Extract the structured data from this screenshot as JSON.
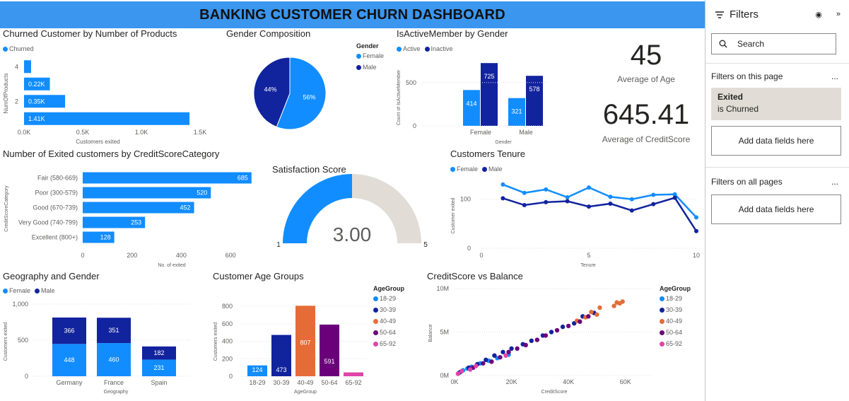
{
  "dashboard_title": "BANKING CUSTOMER CHURN DASHBOARD",
  "colors": {
    "blue": "#118dff",
    "navy": "#12239e",
    "orange": "#e66c37",
    "purple": "#6b007b",
    "pink": "#e044a7",
    "gauge_bg": "#e1ddd6",
    "banner": "#3a96ef"
  },
  "kpis": [
    {
      "value": "45",
      "label": "Average of Age"
    },
    {
      "value": "645.41",
      "label": "Average of CreditScore"
    }
  ],
  "chart_data": [
    {
      "id": "products",
      "type": "bar",
      "orientation": "horizontal",
      "title": "Churned Customer by Number of Products",
      "legend": [
        "Churned"
      ],
      "xlabel": "Customers exited",
      "ylabel": "NumOfProducts",
      "categories": [
        "1",
        "2",
        "3",
        "4"
      ],
      "values": [
        1410,
        350,
        220,
        60
      ],
      "value_labels": [
        "1.41K",
        "0.35K",
        "0.22K",
        ""
      ],
      "y_ticks": [
        "2",
        "4"
      ],
      "x_ticks": [
        "0.0K",
        "0.5K",
        "1.0K",
        "1.5K"
      ],
      "xlim": [
        0,
        1500
      ]
    },
    {
      "id": "gender",
      "type": "pie",
      "title": "Gender Composition",
      "legend_title": "Gender",
      "labels": [
        "Female",
        "Male"
      ],
      "values": [
        56,
        44
      ],
      "value_labels": [
        "56%",
        "44%"
      ]
    },
    {
      "id": "active",
      "type": "bar",
      "title": "IsActiveMember by Gender",
      "legend": [
        "Active",
        "Inactive"
      ],
      "xlabel": "Gender",
      "ylabel": "Count of IsActiveMember",
      "categories": [
        "Female",
        "Male"
      ],
      "series": [
        {
          "name": "Active",
          "values": [
            414,
            321
          ]
        },
        {
          "name": "Inactive",
          "values": [
            725,
            578
          ]
        }
      ],
      "y_ticks": [
        "0",
        "500"
      ],
      "ylim": [
        0,
        800
      ]
    },
    {
      "id": "creditcat",
      "type": "bar",
      "orientation": "horizontal",
      "title": "Number of Exited customers by CreditScoreCategory",
      "xlabel": "No. of exited",
      "ylabel": "CreditScoreCategory",
      "categories": [
        "Fair (580-669)",
        "Poor (300-579)",
        "Good (670-739)",
        "Very Good (740-799)",
        "Excellent (800+)"
      ],
      "values": [
        685,
        520,
        452,
        253,
        128
      ],
      "x_ticks": [
        "0",
        "200",
        "400",
        "600"
      ],
      "xlim": [
        0,
        700
      ]
    },
    {
      "id": "satisfaction",
      "type": "gauge",
      "title": "Satisfaction Score",
      "value": 3.0,
      "value_label": "3.00",
      "min": 1,
      "max": 5,
      "min_label": "1",
      "max_label": "5"
    },
    {
      "id": "tenure",
      "type": "line",
      "title": "Customers Tenure",
      "legend": [
        "Female",
        "Male"
      ],
      "xlabel": "Tenure",
      "ylabel": "Customer exited",
      "x": [
        1,
        2,
        3,
        4,
        5,
        6,
        7,
        8,
        9,
        10
      ],
      "series": [
        {
          "name": "Female",
          "values": [
            130,
            113,
            120,
            104,
            124,
            105,
            100,
            109,
            110,
            63
          ]
        },
        {
          "name": "Male",
          "values": [
            102,
            88,
            94,
            96,
            85,
            91,
            77,
            90,
            103,
            35
          ]
        }
      ],
      "x_ticks": [
        "0",
        "5",
        "10"
      ],
      "y_ticks": [
        "0",
        "100"
      ],
      "xlim": [
        0,
        10
      ],
      "ylim": [
        0,
        140
      ]
    },
    {
      "id": "geo",
      "type": "bar",
      "stacked": true,
      "title": "Geography and Gender",
      "legend": [
        "Female",
        "Male"
      ],
      "xlabel": "Geography",
      "ylabel": "Customers exited",
      "categories": [
        "Germany",
        "France",
        "Spain"
      ],
      "series": [
        {
          "name": "Female",
          "values": [
            448,
            460,
            231
          ]
        },
        {
          "name": "Male",
          "values": [
            366,
            351,
            182
          ]
        }
      ],
      "y_ticks": [
        "0",
        "500",
        "1,000"
      ],
      "ylim": [
        0,
        1000
      ]
    },
    {
      "id": "agegroups",
      "type": "bar",
      "title": "Customer Age Groups",
      "legend_title": "AgeGroup",
      "xlabel": "AgeGroup",
      "ylabel": "Customers exited",
      "categories": [
        "18-29",
        "30-39",
        "40-49",
        "50-64",
        "65-92"
      ],
      "values": [
        124,
        473,
        807,
        591,
        44
      ],
      "value_labels": [
        "124",
        "473",
        "807",
        "591",
        ""
      ],
      "y_ticks": [
        "0",
        "200",
        "400",
        "600",
        "800"
      ],
      "ylim": [
        0,
        850
      ]
    },
    {
      "id": "scatter",
      "type": "scatter",
      "title": "CreditScore vs Balance",
      "legend_title": "AgeGroup",
      "legend": [
        "18-29",
        "30-39",
        "40-49",
        "50-64",
        "65-92"
      ],
      "xlabel": "CreditScore",
      "ylabel": "Balance",
      "x_ticks": [
        "0K",
        "20K",
        "40K",
        "60K"
      ],
      "y_ticks": [
        "0M",
        "5M",
        "10M"
      ],
      "xlim": [
        0,
        70000
      ],
      "ylim": [
        0,
        10000000
      ],
      "series": [
        {
          "name": "18-29",
          "points": [
            [
              1500,
              300000
            ],
            [
              3000,
              600000
            ],
            [
              4500,
              800000
            ],
            [
              6000,
              1000000
            ],
            [
              9000,
              1400000
            ],
            [
              12000,
              1700000
            ],
            [
              15000,
              2000000
            ],
            [
              19000,
              2400000
            ]
          ]
        },
        {
          "name": "30-39",
          "points": [
            [
              2000,
              400000
            ],
            [
              5000,
              900000
            ],
            [
              8000,
              1300000
            ],
            [
              11000,
              1800000
            ],
            [
              14000,
              2300000
            ],
            [
              17000,
              2700000
            ],
            [
              20000,
              3100000
            ],
            [
              24000,
              3600000
            ],
            [
              27000,
              4000000
            ],
            [
              31000,
              4600000
            ],
            [
              34000,
              5000000
            ],
            [
              38000,
              5600000
            ],
            [
              42000,
              6000000
            ],
            [
              45000,
              6800000
            ],
            [
              49000,
              7200000
            ]
          ]
        },
        {
          "name": "40-49",
          "points": [
            [
              43000,
              6300000
            ],
            [
              46000,
              6700000
            ],
            [
              48000,
              7300000
            ],
            [
              50000,
              7000000
            ],
            [
              51000,
              7800000
            ],
            [
              56000,
              8000000
            ],
            [
              57000,
              8400000
            ],
            [
              58000,
              8300000
            ],
            [
              59000,
              8500000
            ]
          ]
        },
        {
          "name": "50-64",
          "points": [
            [
              6500,
              900000
            ],
            [
              10000,
              1400000
            ],
            [
              13000,
              1600000
            ],
            [
              16000,
              2100000
            ],
            [
              19000,
              2700000
            ],
            [
              22000,
              3100000
            ],
            [
              25000,
              3500000
            ],
            [
              29000,
              4100000
            ],
            [
              32000,
              4600000
            ],
            [
              36000,
              5200000
            ],
            [
              40000,
              5700000
            ],
            [
              44000,
              6200000
            ],
            [
              47000,
              6800000
            ]
          ]
        },
        {
          "name": "65-92",
          "points": [
            [
              1200,
              200000
            ],
            [
              2500,
              500000
            ],
            [
              5500,
              700000
            ],
            [
              7500,
              1100000
            ],
            [
              18000,
              2300000
            ]
          ]
        }
      ]
    }
  ],
  "filters": {
    "title": "Filters",
    "search_label": "Search",
    "on_this_page": "Filters on this page",
    "card_field": "Exited",
    "card_condition": "is Churned",
    "add_fields_1": "Add data fields here",
    "on_all_pages": "Filters on all pages",
    "add_fields_2": "Add data fields here",
    "more": "..."
  }
}
